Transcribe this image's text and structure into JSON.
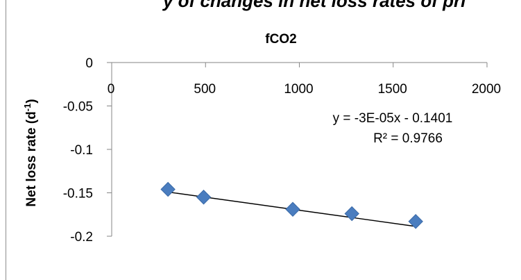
{
  "header_fragment": "y of changes in net loss rates of pri",
  "chart_data": {
    "type": "scatter",
    "title": "fCO2",
    "xlabel": "",
    "ylabel_main": "Net loss rate (d",
    "ylabel_sup": "-1",
    "ylabel_close": ")",
    "xlim": [
      0,
      2000
    ],
    "ylim": [
      -0.2,
      0
    ],
    "x_ticks": [
      0,
      500,
      1000,
      1500,
      2000
    ],
    "x_tick_labels": [
      "0",
      "500",
      "1000",
      "1500",
      "2000"
    ],
    "y_ticks": [
      0,
      -0.05,
      -0.1,
      -0.15,
      -0.2
    ],
    "y_tick_labels": [
      "0",
      "-0.05",
      "-0.1",
      "-0.15",
      "-0.2"
    ],
    "series": [
      {
        "x": [
          300,
          490,
          965,
          1280,
          1620
        ],
        "y": [
          -0.146,
          -0.155,
          -0.169,
          -0.174,
          -0.183
        ],
        "marker": "diamond",
        "color": "#4a7dbf"
      }
    ],
    "trendline": {
      "slope": -3e-05,
      "intercept": -0.1401,
      "x_range": [
        300,
        1620
      ],
      "color": "#000000"
    },
    "equation": "y = -3E-05x - 0.1401",
    "r_squared": "R² = 0.9766",
    "grid": false,
    "legend": "none"
  }
}
